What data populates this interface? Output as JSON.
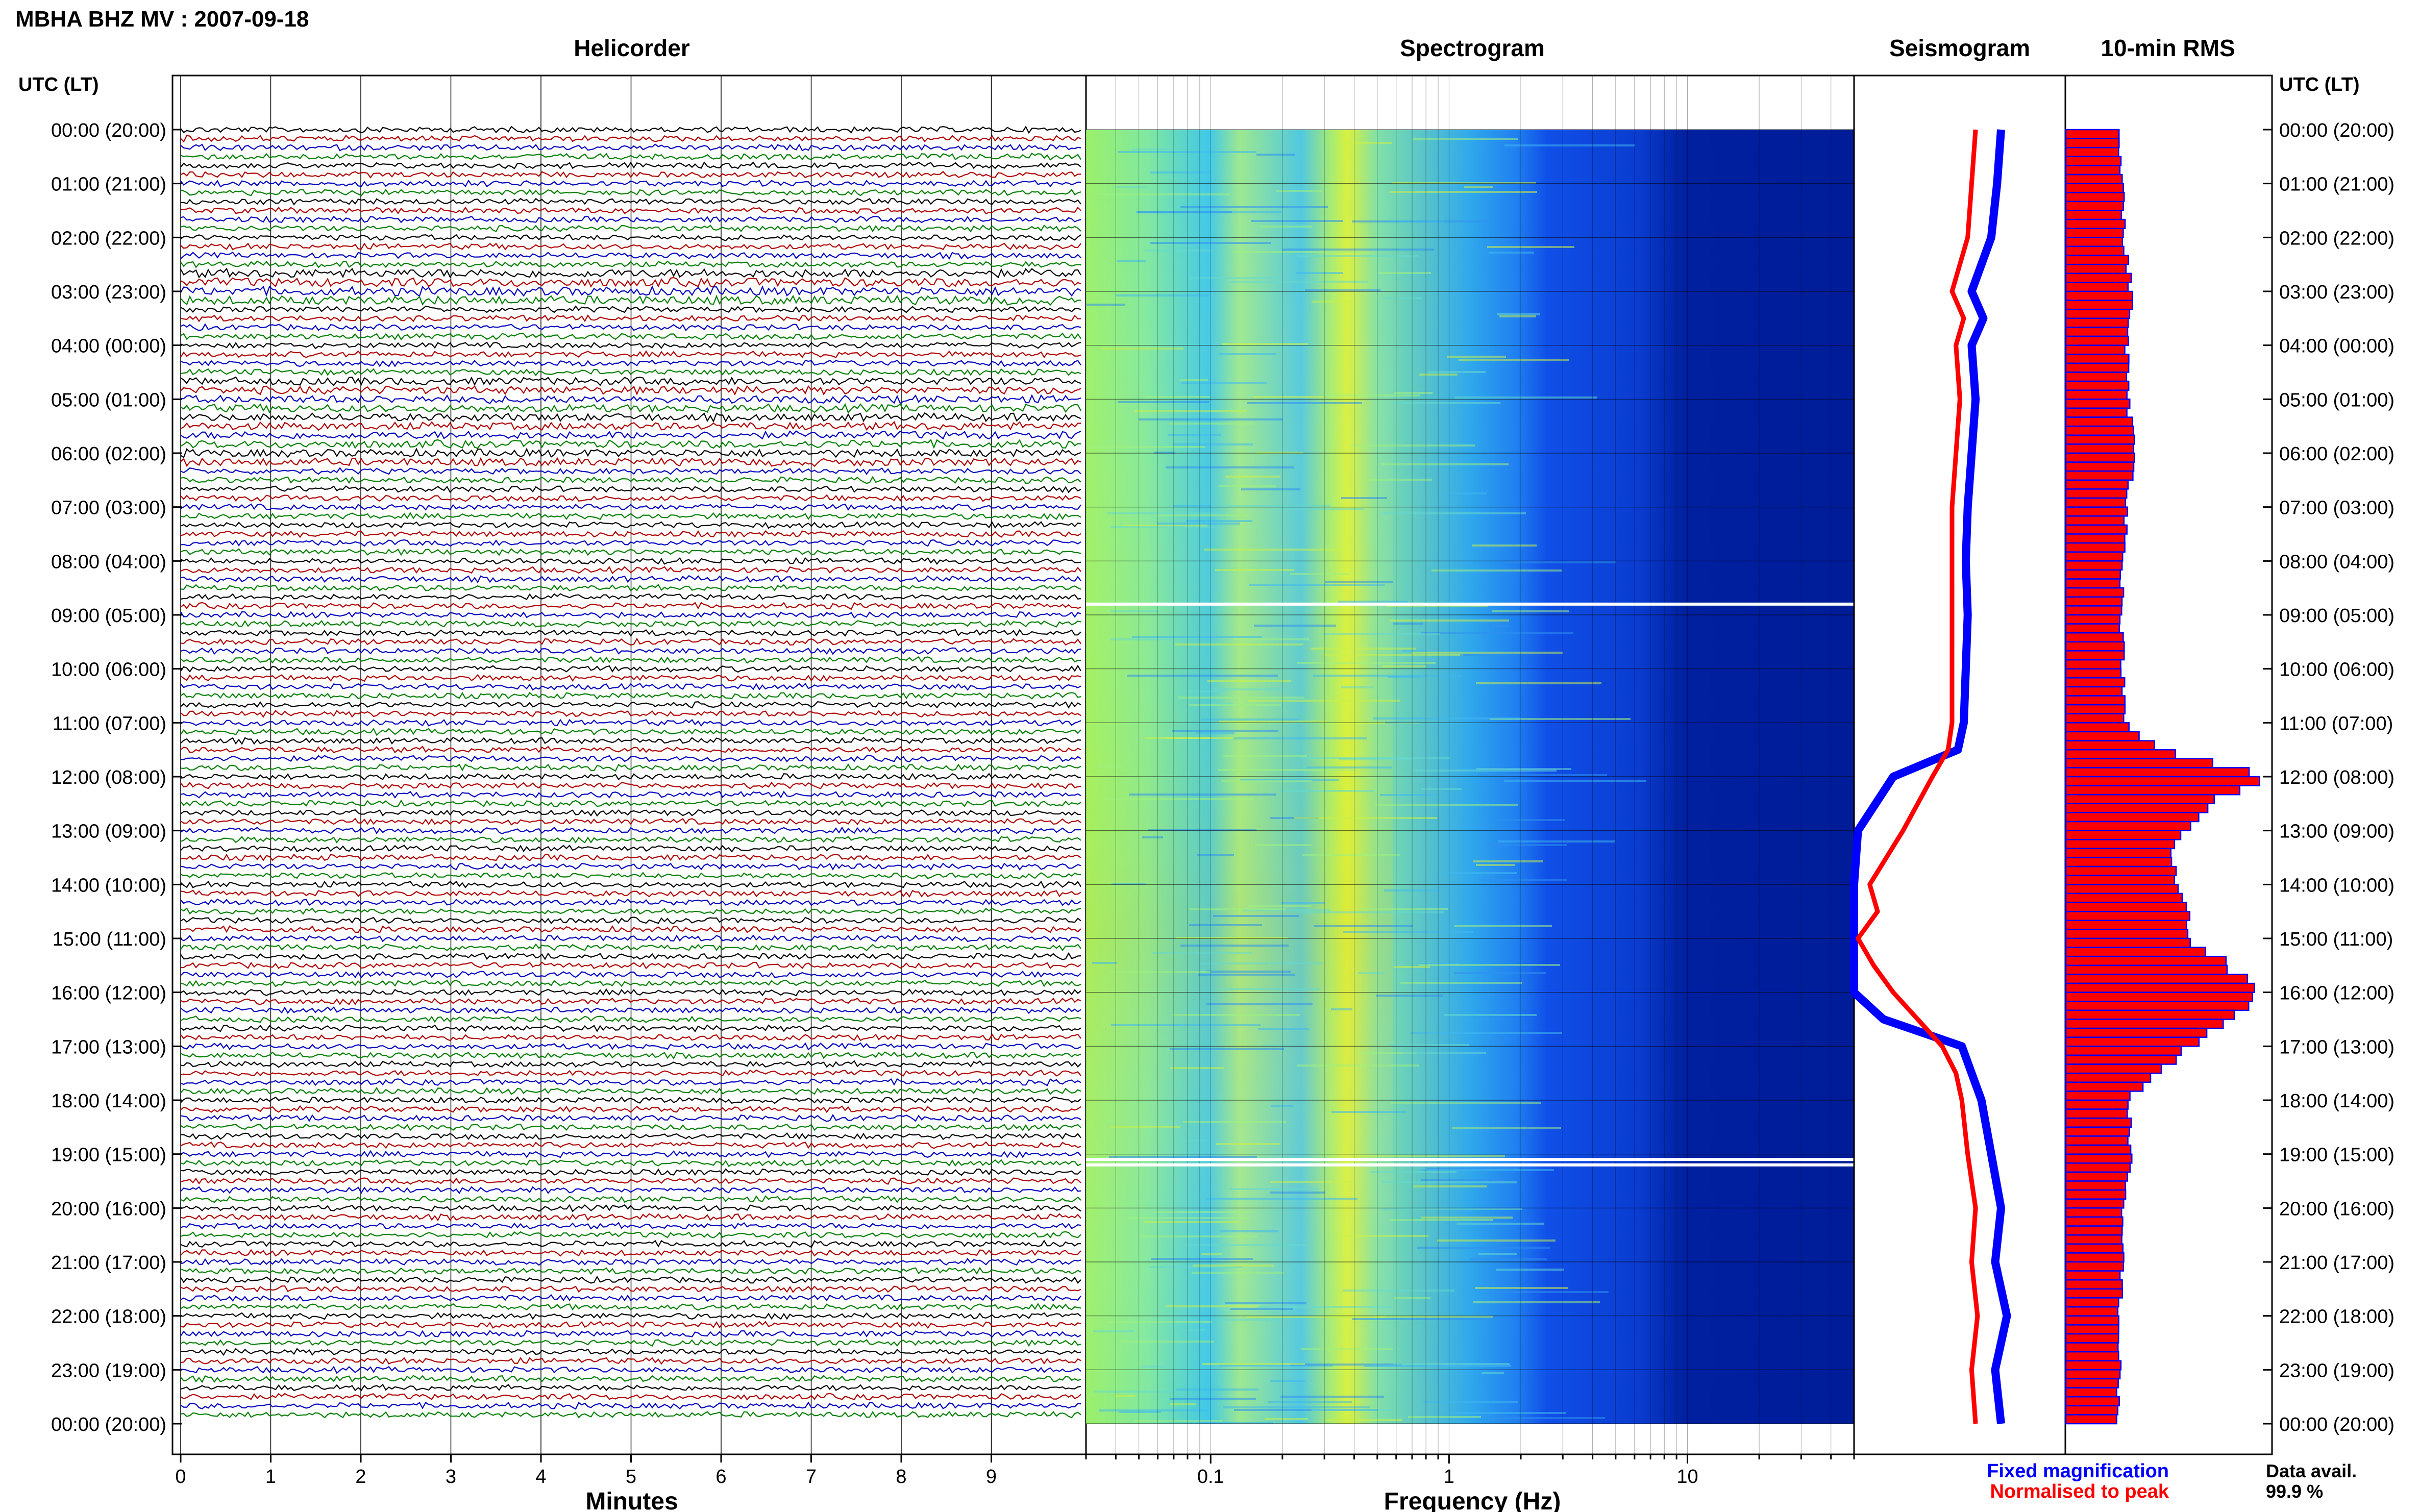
{
  "header": {
    "title": "MBHA BHZ MV : 2007-09-18"
  },
  "panels": {
    "helicorder": "Helicorder",
    "spectrogram": "Spectrogram",
    "seismogram": "Seismogram",
    "rms": "10-min RMS"
  },
  "axes": {
    "time_label_left": "UTC (LT)",
    "time_label_right": "UTC (LT)",
    "minutes_label": "Minutes",
    "frequency_label": "Frequency (Hz)"
  },
  "time_ticks": [
    "00:00 (20:00)",
    "01:00 (21:00)",
    "02:00 (22:00)",
    "03:00 (23:00)",
    "04:00 (00:00)",
    "05:00 (01:00)",
    "06:00 (02:00)",
    "07:00 (03:00)",
    "08:00 (04:00)",
    "09:00 (05:00)",
    "10:00 (06:00)",
    "11:00 (07:00)",
    "12:00 (08:00)",
    "13:00 (09:00)",
    "14:00 (10:00)",
    "15:00 (11:00)",
    "16:00 (12:00)",
    "17:00 (13:00)",
    "18:00 (14:00)",
    "19:00 (15:00)",
    "20:00 (16:00)",
    "21:00 (17:00)",
    "22:00 (18:00)",
    "23:00 (19:00)",
    "00:00 (20:00)"
  ],
  "minute_ticks": [
    "0",
    "1",
    "2",
    "3",
    "4",
    "5",
    "6",
    "7",
    "8",
    "9"
  ],
  "frequency_ticks": [
    {
      "value": 0.1,
      "label": "0.1"
    },
    {
      "value": 1,
      "label": "1"
    },
    {
      "value": 10,
      "label": "10"
    }
  ],
  "legend": {
    "fixed": "Fixed magnification",
    "normalised": "Normalised to peak",
    "data_avail_label": "Data avail.",
    "data_avail_value": "99.9 %"
  },
  "colors": {
    "fixed": "#0000ff",
    "normalised": "#ff0000",
    "trace_cycle": [
      "#000000",
      "#b00000",
      "#0000c0",
      "#008000"
    ],
    "rms_fill": "#ff0000",
    "rms_edge": "#0000ff"
  },
  "chart_data": [
    {
      "type": "line",
      "name": "helicorder",
      "title": "Helicorder",
      "xlabel": "Minutes",
      "xlim": [
        0,
        10
      ],
      "ylim_hours_utc": [
        0,
        24
      ],
      "lines_count": 144
    },
    {
      "type": "heatmap",
      "name": "spectrogram",
      "title": "Spectrogram",
      "xlabel": "Frequency (Hz)",
      "x_scale": "log",
      "xlim": [
        0.03,
        50
      ],
      "colormap": "jet",
      "data_gaps_utc_hours": [
        8.8,
        19.1,
        19.2
      ]
    },
    {
      "type": "line",
      "name": "seismogram",
      "title": "Seismogram",
      "series": [
        {
          "name": "Fixed magnification",
          "hours": [
            0,
            1,
            2,
            3,
            3.5,
            4,
            5,
            6,
            7,
            8,
            9,
            10,
            11,
            11.5,
            12,
            13,
            14,
            15,
            16,
            16.5,
            17,
            18,
            19,
            20,
            21,
            22,
            23,
            24
          ],
          "values": [
            0.75,
            0.73,
            0.7,
            0.6,
            0.66,
            0.6,
            0.62,
            0.6,
            0.58,
            0.57,
            0.58,
            0.57,
            0.56,
            0.53,
            0.2,
            0.02,
            0.0,
            0.0,
            0.0,
            0.15,
            0.55,
            0.65,
            0.7,
            0.75,
            0.72,
            0.78,
            0.72,
            0.75
          ]
        },
        {
          "name": "Normalised to peak",
          "hours": [
            0,
            1,
            2,
            3,
            3.5,
            4,
            5,
            6,
            7,
            8,
            9,
            10,
            11,
            11.5,
            12,
            13,
            14,
            14.5,
            15,
            15.5,
            16,
            17,
            17.5,
            18,
            19,
            20,
            21,
            22,
            23,
            24
          ],
          "values": [
            0.62,
            0.6,
            0.58,
            0.5,
            0.56,
            0.52,
            0.54,
            0.52,
            0.5,
            0.5,
            0.5,
            0.5,
            0.5,
            0.48,
            0.4,
            0.25,
            0.08,
            0.12,
            0.02,
            0.1,
            0.2,
            0.45,
            0.52,
            0.55,
            0.58,
            0.62,
            0.6,
            0.63,
            0.6,
            0.62
          ]
        }
      ]
    },
    {
      "type": "bar",
      "name": "10-min RMS",
      "title": "10-min RMS",
      "orientation": "horizontal",
      "hours": [
        0,
        1,
        2,
        3,
        4,
        5,
        6,
        7,
        8,
        9,
        10,
        11,
        11.5,
        12,
        12.5,
        13,
        13.5,
        14,
        14.5,
        15,
        15.5,
        16,
        16.5,
        17,
        18,
        19,
        20,
        21,
        22,
        23,
        24
      ],
      "values": [
        0.26,
        0.28,
        0.28,
        0.32,
        0.3,
        0.3,
        0.34,
        0.3,
        0.28,
        0.27,
        0.28,
        0.28,
        0.45,
        0.98,
        0.7,
        0.58,
        0.5,
        0.55,
        0.6,
        0.6,
        0.8,
        0.92,
        0.82,
        0.6,
        0.3,
        0.32,
        0.27,
        0.28,
        0.26,
        0.26,
        0.25
      ]
    }
  ]
}
